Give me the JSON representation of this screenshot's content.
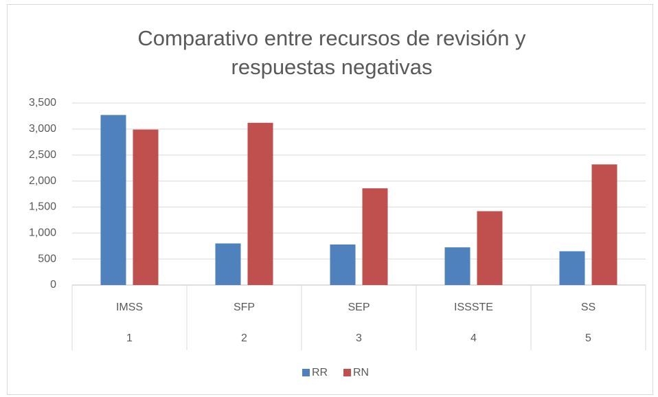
{
  "chart_data": {
    "type": "bar",
    "title_lines": [
      "Comparativo entre recursos de revisión y",
      "respuestas negativas"
    ],
    "categories": [
      "IMSS",
      "SFP",
      "SEP",
      "ISSSTE",
      "SS"
    ],
    "category_numbers": [
      1,
      2,
      3,
      4,
      5
    ],
    "series": [
      {
        "name": "RR",
        "color": "#4f81bd",
        "values": [
          3270,
          800,
          780,
          725,
          650
        ]
      },
      {
        "name": "RN",
        "color": "#c0504d",
        "values": [
          2990,
          3120,
          1860,
          1420,
          2320
        ]
      }
    ],
    "ylim": [
      0,
      3500
    ],
    "yticks": [
      0,
      500,
      {
        "value": 1000,
        "label": "1,000"
      },
      {
        "value": 1500,
        "label": "1,500"
      },
      {
        "value": 2000,
        "label": "2,000"
      },
      {
        "value": 2500,
        "label": "2,500"
      },
      {
        "value": 3000,
        "label": "3,000"
      },
      {
        "value": 3500,
        "label": "3,500"
      }
    ],
    "grid": true,
    "legend": "bottom"
  }
}
